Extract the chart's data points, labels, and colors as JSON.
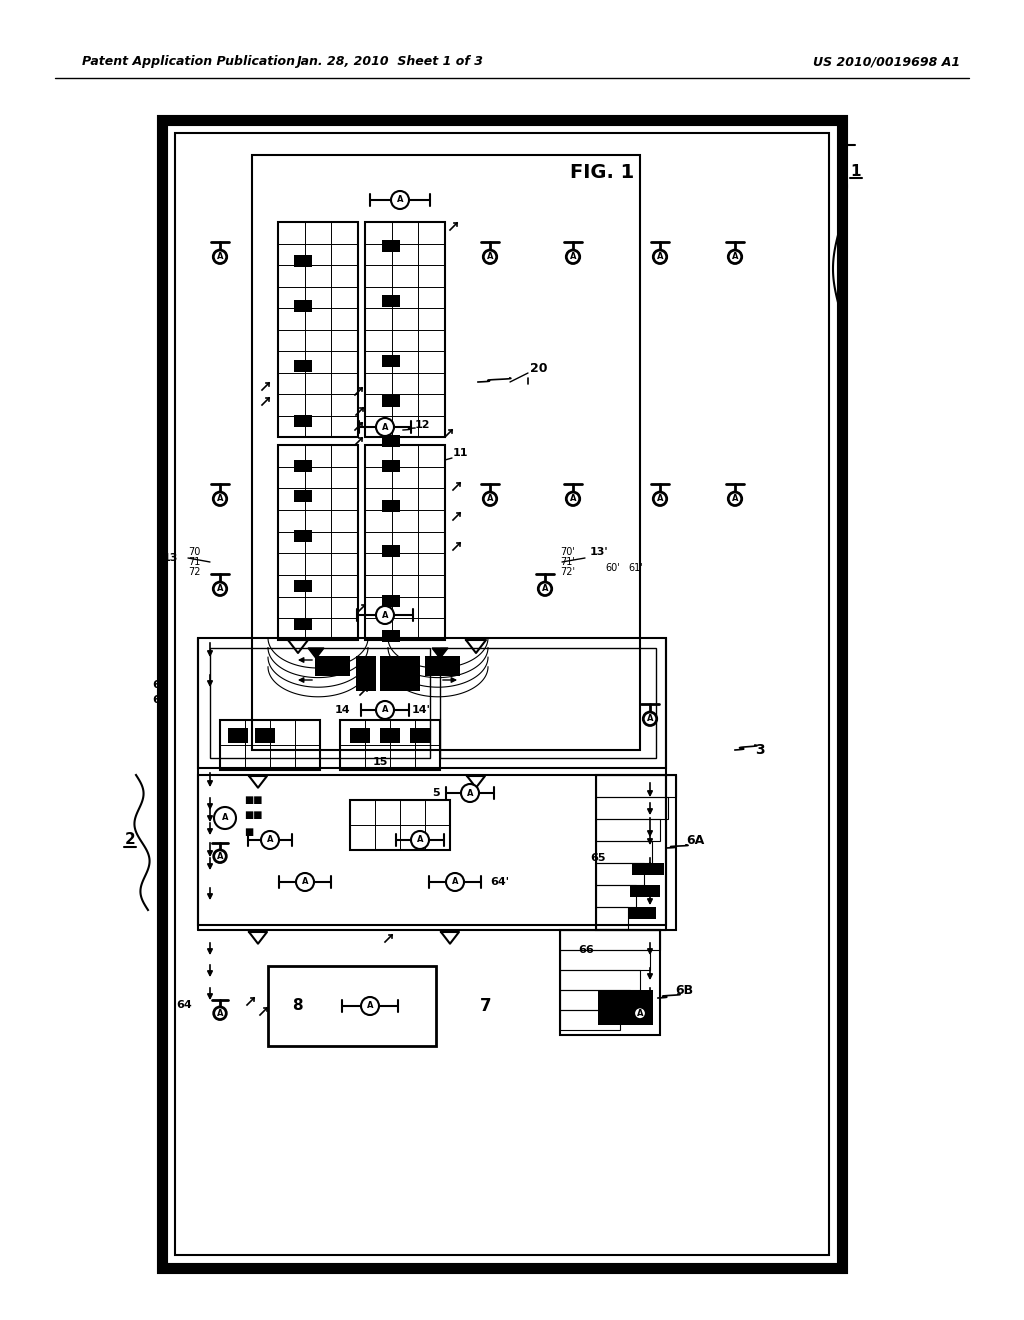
{
  "title_left": "Patent Application Publication",
  "title_mid": "Jan. 28, 2010  Sheet 1 of 3",
  "title_right": "US 2010/0019698 A1",
  "fig_label": "FIG. 1",
  "bg_color": "#ffffff"
}
